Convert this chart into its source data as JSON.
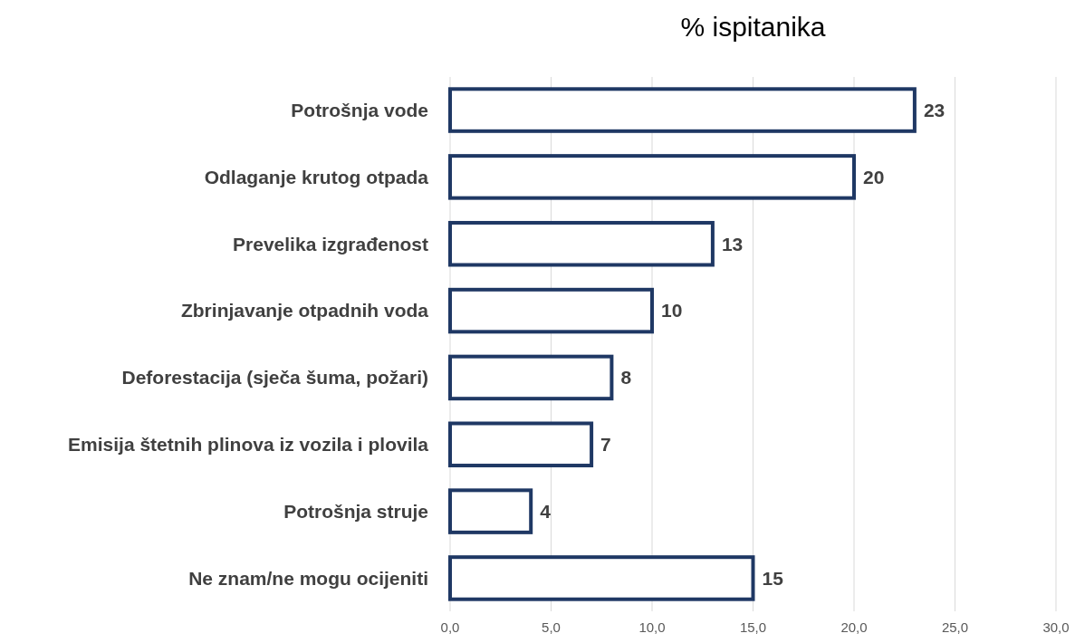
{
  "chart_data": {
    "type": "bar",
    "orientation": "horizontal",
    "title": "% ispitanika",
    "categories": [
      "Potrošnja vode",
      "Odlaganje krutog otpada",
      "Prevelika izgrađenost",
      "Zbrinjavanje otpadnih voda",
      "Deforestacija (sječa šuma, požari)",
      "Emisija štetnih plinova iz vozila i plovila",
      "Potrošnja struje",
      "Ne znam/ne mogu ocijeniti"
    ],
    "values": [
      23,
      20,
      13,
      10,
      8,
      7,
      4,
      15
    ],
    "color": "#1f3864",
    "data_labels": true,
    "grid": "x",
    "xlim": [
      0,
      30
    ],
    "xticks": [
      {
        "value": 0,
        "label": "0,0"
      },
      {
        "value": 5,
        "label": "5,0"
      },
      {
        "value": 10,
        "label": "10,0"
      },
      {
        "value": 15,
        "label": "15,0"
      },
      {
        "value": 20,
        "label": "20,0"
      },
      {
        "value": 25,
        "label": "25,0"
      },
      {
        "value": 30,
        "label": "30,0"
      }
    ]
  }
}
